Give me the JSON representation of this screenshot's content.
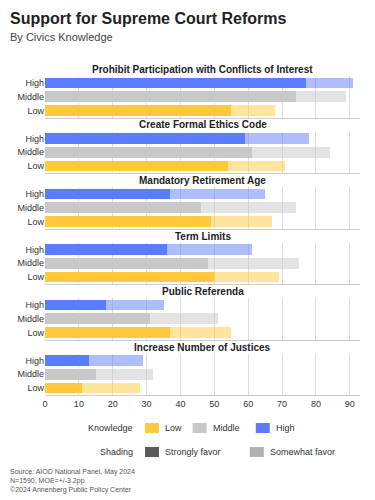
{
  "title": "Support for Supreme Court Reforms",
  "subtitle": "By Civics Knowledge",
  "legends": [
    {
      "title": "Knowledge",
      "items": [
        {
          "label": "Low",
          "color": "#FFC93C"
        },
        {
          "label": "Middle",
          "color": "#C8C8C8"
        },
        {
          "label": "High",
          "color": "#5B7CFF"
        }
      ]
    },
    {
      "title": "Shading",
      "items": [
        {
          "label": "Strongly favor",
          "color": "#5a5a5a"
        },
        {
          "label": "Somewhat favor",
          "color": "#b0b0b0"
        }
      ]
    }
  ],
  "source": [
    "Source: AIOD National Panel, May 2024",
    "N=1590, MOE=+/-3.2pp",
    "©2024 Annenberg Public Policy Center"
  ],
  "chart_data": [
    {
      "type": "bar",
      "title": "Prohibit Participation with Conflicts of Interest",
      "orientation": "horizontal",
      "stacked": true,
      "grid": true,
      "tick_labels": "y",
      "categories": [
        "High",
        "Middle",
        "Low"
      ],
      "colors": [
        "#5B7CFF",
        "#C8C8C8",
        "#FFC93C"
      ],
      "series": [
        {
          "name": "Strongly favor",
          "values": [
            77,
            74,
            55
          ]
        },
        {
          "name": "Somewhat favor",
          "values": [
            14,
            15,
            13
          ]
        }
      ],
      "xlim": [
        0,
        93
      ],
      "xticks": [
        0,
        10,
        20,
        30,
        40,
        50,
        60,
        70,
        80,
        90
      ]
    },
    {
      "type": "bar",
      "title": "Create Formal Ethics Code",
      "orientation": "horizontal",
      "stacked": true,
      "grid": true,
      "tick_labels": "y",
      "categories": [
        "High",
        "Middle",
        "Low"
      ],
      "colors": [
        "#5B7CFF",
        "#C8C8C8",
        "#FFC93C"
      ],
      "series": [
        {
          "name": "Strongly favor",
          "values": [
            59,
            61,
            54
          ]
        },
        {
          "name": "Somewhat favor",
          "values": [
            19,
            23,
            17
          ]
        }
      ],
      "xlim": [
        0,
        93
      ],
      "xticks": [
        0,
        10,
        20,
        30,
        40,
        50,
        60,
        70,
        80,
        90
      ]
    },
    {
      "type": "bar",
      "title": "Mandatory Retirement Age",
      "orientation": "horizontal",
      "stacked": true,
      "grid": true,
      "tick_labels": "y",
      "categories": [
        "High",
        "Middle",
        "Low"
      ],
      "colors": [
        "#5B7CFF",
        "#C8C8C8",
        "#FFC93C"
      ],
      "series": [
        {
          "name": "Strongly favor",
          "values": [
            37,
            46,
            49
          ]
        },
        {
          "name": "Somewhat favor",
          "values": [
            28,
            28,
            18
          ]
        }
      ],
      "xlim": [
        0,
        93
      ],
      "xticks": [
        0,
        10,
        20,
        30,
        40,
        50,
        60,
        70,
        80,
        90
      ]
    },
    {
      "type": "bar",
      "title": "Term Limits",
      "orientation": "horizontal",
      "stacked": true,
      "grid": true,
      "tick_labels": "y",
      "categories": [
        "High",
        "Middle",
        "Low"
      ],
      "colors": [
        "#5B7CFF",
        "#C8C8C8",
        "#FFC93C"
      ],
      "series": [
        {
          "name": "Strongly favor",
          "values": [
            36,
            48,
            50
          ]
        },
        {
          "name": "Somewhat favor",
          "values": [
            25,
            27,
            19
          ]
        }
      ],
      "xlim": [
        0,
        93
      ],
      "xticks": [
        0,
        10,
        20,
        30,
        40,
        50,
        60,
        70,
        80,
        90
      ]
    },
    {
      "type": "bar",
      "title": "Public Referenda",
      "orientation": "horizontal",
      "stacked": true,
      "grid": true,
      "tick_labels": "y",
      "categories": [
        "High",
        "Middle",
        "Low"
      ],
      "colors": [
        "#5B7CFF",
        "#C8C8C8",
        "#FFC93C"
      ],
      "series": [
        {
          "name": "Strongly favor",
          "values": [
            18,
            31,
            37
          ]
        },
        {
          "name": "Somewhat favor",
          "values": [
            17,
            20,
            18
          ]
        }
      ],
      "xlim": [
        0,
        93
      ],
      "xticks": [
        0,
        10,
        20,
        30,
        40,
        50,
        60,
        70,
        80,
        90
      ]
    },
    {
      "type": "bar",
      "title": "Increase Number of Justices",
      "orientation": "horizontal",
      "stacked": true,
      "grid": true,
      "categories": [
        "High",
        "Middle",
        "Low"
      ],
      "colors": [
        "#5B7CFF",
        "#C8C8C8",
        "#FFC93C"
      ],
      "series": [
        {
          "name": "Strongly favor",
          "values": [
            13,
            15,
            11
          ]
        },
        {
          "name": "Somewhat favor",
          "values": [
            16,
            17,
            17
          ]
        }
      ],
      "xlim": [
        0,
        93
      ],
      "xticks": [
        0,
        10,
        20,
        30,
        40,
        50,
        60,
        70,
        80,
        90
      ]
    }
  ]
}
